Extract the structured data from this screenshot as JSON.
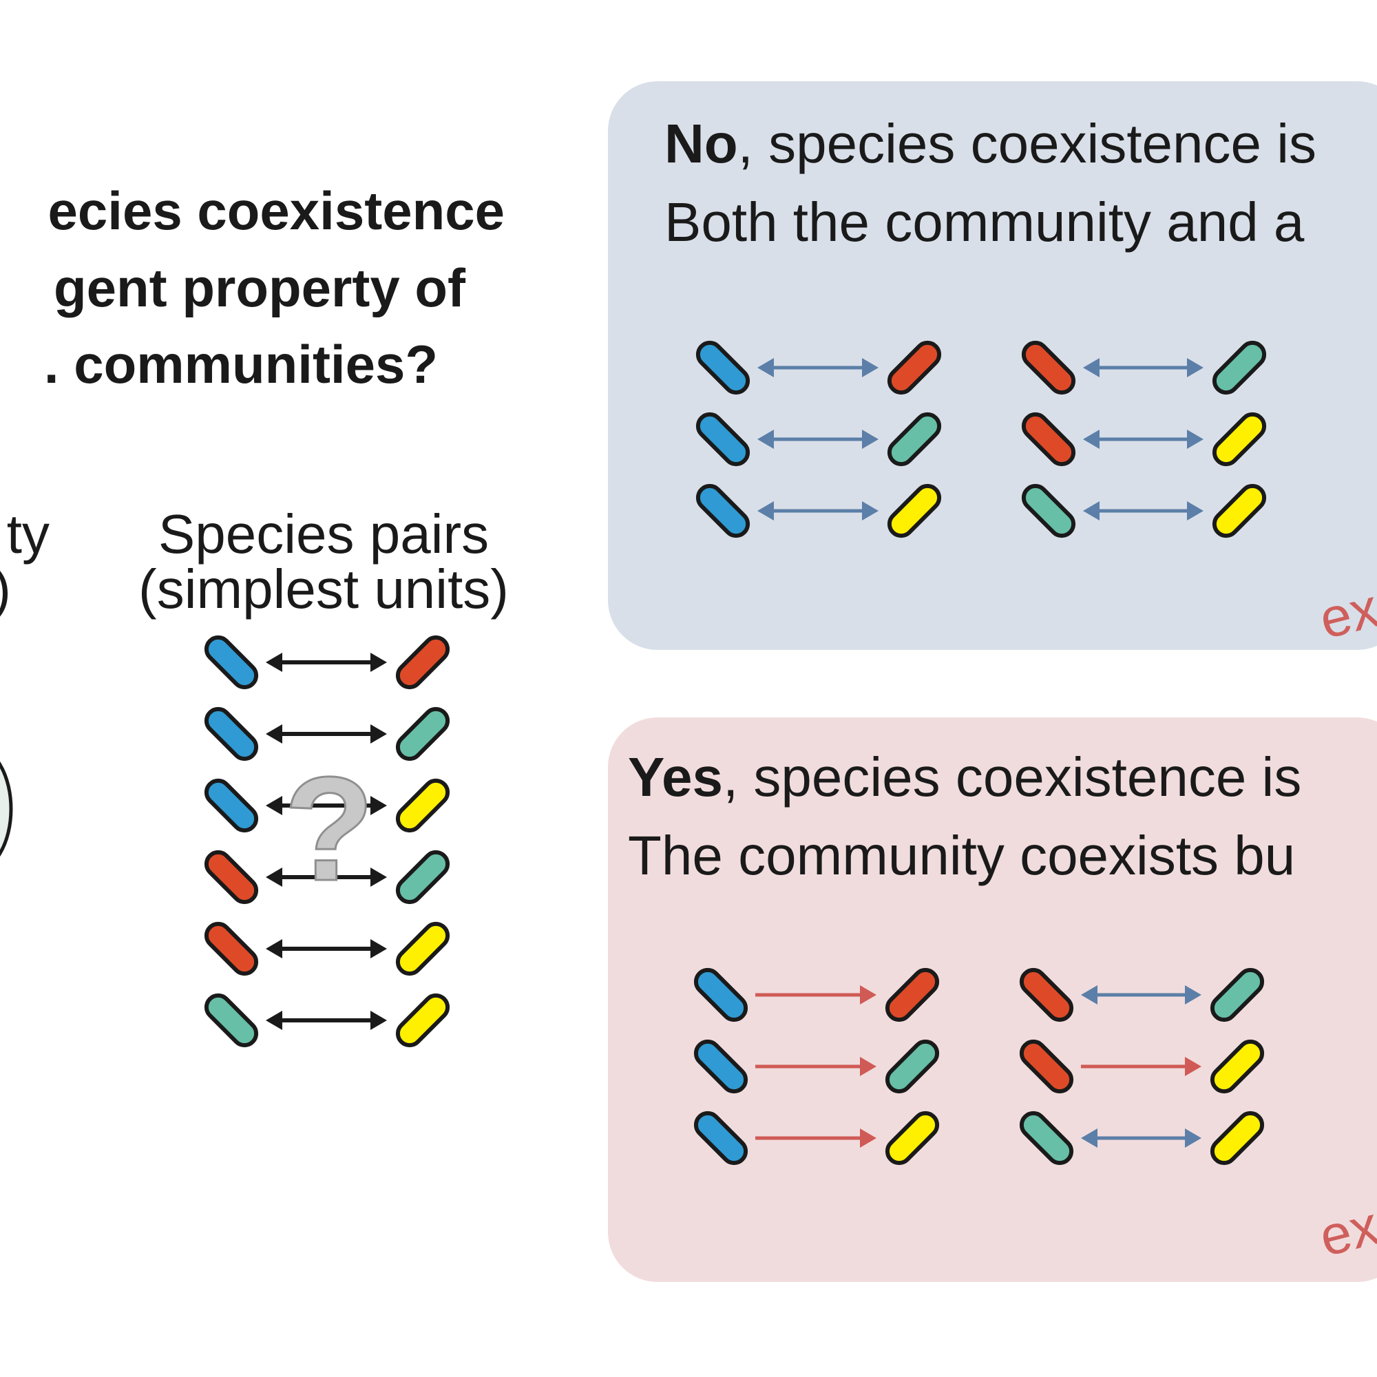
{
  "question": {
    "lines": [
      "ecies coexistence",
      "gent property of",
      ". communities?"
    ]
  },
  "community_label": {
    "lines": [
      "ty",
      ")"
    ]
  },
  "pairs_label": {
    "lines": [
      "Species pairs",
      "(simplest units)"
    ]
  },
  "question_mark": "?",
  "colors": {
    "blue": "#2f9ad3",
    "red": "#de4a28",
    "green": "#66bfa6",
    "yellow": "#fff000",
    "outline": "#1a1a1a",
    "arrow_black": "#1a1a1a",
    "arrow_blue": "#5b7fa8",
    "arrow_red": "#d05a55",
    "panel_no_bg": "#d9dfe9",
    "panel_yes_bg": "#f1dcdd",
    "annot_red": "#cf5f5c",
    "qmark": "#c8c8c8"
  },
  "left_pairs": [
    {
      "a": "blue",
      "b": "red",
      "arrow": "both"
    },
    {
      "a": "blue",
      "b": "green",
      "arrow": "both"
    },
    {
      "a": "blue",
      "b": "yellow",
      "arrow": "both"
    },
    {
      "a": "red",
      "b": "green",
      "arrow": "both"
    },
    {
      "a": "red",
      "b": "yellow",
      "arrow": "both"
    },
    {
      "a": "green",
      "b": "yellow",
      "arrow": "both"
    }
  ],
  "panel_no": {
    "bold": "No",
    "line1_rest": ", species coexistence is",
    "line2": "Both the community and a",
    "annotation": "ex",
    "pairs_left": [
      {
        "a": "blue",
        "b": "red",
        "arrow": "both"
      },
      {
        "a": "blue",
        "b": "green",
        "arrow": "both"
      },
      {
        "a": "blue",
        "b": "yellow",
        "arrow": "both"
      }
    ],
    "pairs_right": [
      {
        "a": "red",
        "b": "green",
        "arrow": "both"
      },
      {
        "a": "red",
        "b": "yellow",
        "arrow": "both"
      },
      {
        "a": "green",
        "b": "yellow",
        "arrow": "both"
      }
    ]
  },
  "panel_yes": {
    "bold": "Yes",
    "line1_rest": ", species coexistence is",
    "line2": "The community coexists bu",
    "annotation": "ex",
    "pairs_left": [
      {
        "a": "blue",
        "b": "red",
        "arrow": "right"
      },
      {
        "a": "blue",
        "b": "green",
        "arrow": "right"
      },
      {
        "a": "blue",
        "b": "yellow",
        "arrow": "right"
      }
    ],
    "pairs_right": [
      {
        "a": "red",
        "b": "green",
        "arrow": "both"
      },
      {
        "a": "red",
        "b": "yellow",
        "arrow": "right"
      },
      {
        "a": "green",
        "b": "yellow",
        "arrow": "both"
      }
    ]
  }
}
